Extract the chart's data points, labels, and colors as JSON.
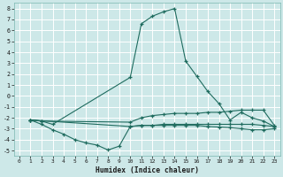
{
  "xlabel": "Humidex (Indice chaleur)",
  "bg_color": "#cde8e8",
  "grid_color": "#ffffff",
  "line_color": "#1e6b5e",
  "xlim": [
    -0.5,
    23.5
  ],
  "ylim": [
    -5.5,
    8.5
  ],
  "xticks": [
    0,
    1,
    2,
    3,
    4,
    5,
    6,
    7,
    8,
    9,
    10,
    11,
    12,
    13,
    14,
    15,
    16,
    17,
    18,
    19,
    20,
    21,
    22,
    23
  ],
  "yticks": [
    -5,
    -4,
    -3,
    -2,
    -1,
    0,
    1,
    2,
    3,
    4,
    5,
    6,
    7,
    8
  ],
  "line1_x": [
    1,
    2,
    3,
    4,
    5,
    6,
    7,
    8,
    9,
    10,
    11,
    12,
    13,
    14,
    15,
    16,
    17,
    18,
    19,
    20,
    21,
    22,
    23
  ],
  "line1_y": [
    -2.2,
    -2.6,
    -3.1,
    -3.5,
    -4.0,
    -4.3,
    -4.5,
    -4.95,
    -4.6,
    -2.8,
    -2.7,
    -2.7,
    -2.7,
    -2.7,
    -2.7,
    -2.7,
    -2.8,
    -2.85,
    -2.9,
    -3.0,
    -3.1,
    -3.1,
    -3.0
  ],
  "line2_x": [
    1,
    2,
    3,
    10,
    11,
    12,
    13,
    14,
    15,
    16,
    17,
    18,
    19,
    20,
    21,
    22,
    23
  ],
  "line2_y": [
    -2.2,
    -2.3,
    -2.6,
    1.7,
    6.6,
    7.3,
    7.7,
    8.0,
    3.2,
    1.8,
    0.4,
    -0.7,
    -2.2,
    -1.5,
    -2.0,
    -2.3,
    -2.8
  ],
  "line3_x": [
    1,
    2,
    10,
    11,
    12,
    13,
    14,
    15,
    16,
    17,
    18,
    19,
    20,
    21,
    22,
    23
  ],
  "line3_y": [
    -2.2,
    -2.3,
    -2.4,
    -2.0,
    -1.8,
    -1.7,
    -1.6,
    -1.6,
    -1.6,
    -1.5,
    -1.5,
    -1.4,
    -1.3,
    -1.3,
    -1.3,
    -2.7
  ],
  "line4_x": [
    1,
    10,
    11,
    12,
    13,
    14,
    15,
    16,
    17,
    18,
    19,
    20,
    21,
    22,
    23
  ],
  "line4_y": [
    -2.2,
    -2.8,
    -2.7,
    -2.7,
    -2.6,
    -2.6,
    -2.6,
    -2.6,
    -2.6,
    -2.6,
    -2.6,
    -2.6,
    -2.6,
    -2.7,
    -2.8
  ]
}
